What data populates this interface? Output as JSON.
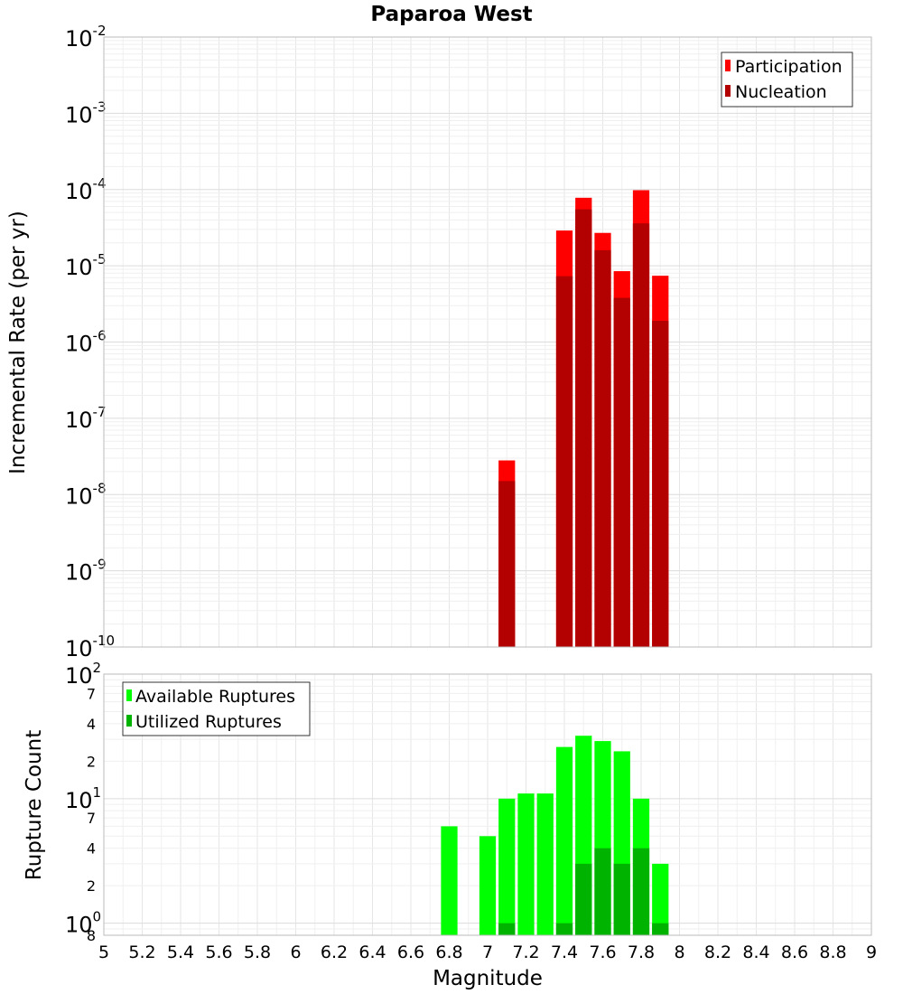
{
  "chart_data": [
    {
      "type": "bar",
      "title": "Paparoa West",
      "xlabel": "",
      "ylabel": "Incremental Rate (per yr)",
      "yscale": "log",
      "ylim": [
        1e-10,
        0.01
      ],
      "xlim": [
        5,
        9
      ],
      "grid": true,
      "legend_position": "top-right",
      "y_ticks": [
        {
          "base": "10",
          "exp": "-10"
        },
        {
          "base": "10",
          "exp": "-9"
        },
        {
          "base": "10",
          "exp": "-8"
        },
        {
          "base": "10",
          "exp": "-7"
        },
        {
          "base": "10",
          "exp": "-6"
        },
        {
          "base": "10",
          "exp": "-5"
        },
        {
          "base": "10",
          "exp": "-4"
        },
        {
          "base": "10",
          "exp": "-3"
        },
        {
          "base": "10",
          "exp": "-2"
        }
      ],
      "x": [
        7.1,
        7.4,
        7.5,
        7.6,
        7.7,
        7.8,
        7.9
      ],
      "series": [
        {
          "name": "Participation",
          "color": "#ff0000",
          "values": [
            2.8e-08,
            2.9e-05,
            7.8e-05,
            2.7e-05,
            8.5e-06,
            9.8e-05,
            7.4e-06
          ]
        },
        {
          "name": "Nucleation",
          "color": "#b30000",
          "values": [
            1.5e-08,
            7.3e-06,
            5.5e-05,
            1.6e-05,
            3.8e-06,
            3.6e-05,
            1.9e-06
          ]
        }
      ]
    },
    {
      "type": "bar",
      "xlabel": "Magnitude",
      "ylabel": "Rupture Count",
      "yscale": "log",
      "ylim": [
        0.8,
        100
      ],
      "xlim": [
        5,
        9
      ],
      "grid": true,
      "legend_position": "top-left",
      "x_ticks": [
        "5",
        "5.2",
        "5.4",
        "5.6",
        "5.8",
        "6",
        "6.2",
        "6.4",
        "6.6",
        "6.8",
        "7",
        "7.2",
        "7.4",
        "7.6",
        "7.8",
        "8",
        "8.2",
        "8.4",
        "8.6",
        "8.8",
        "9"
      ],
      "y_major_ticks": [
        {
          "base": "10",
          "exp": "0",
          "value": 1
        },
        {
          "base": "10",
          "exp": "1",
          "value": 10
        },
        {
          "base": "10",
          "exp": "2",
          "value": 100
        }
      ],
      "y_minor_ticks": [
        {
          "label": "8",
          "value": 0.8
        },
        {
          "label": "2",
          "value": 2
        },
        {
          "label": "4",
          "value": 4
        },
        {
          "label": "7",
          "value": 7
        },
        {
          "label": "2",
          "value": 20
        },
        {
          "label": "4",
          "value": 40
        },
        {
          "label": "7",
          "value": 70
        }
      ],
      "x": [
        6.8,
        7.0,
        7.1,
        7.2,
        7.3,
        7.4,
        7.5,
        7.6,
        7.7,
        7.8,
        7.9
      ],
      "series": [
        {
          "name": "Available Ruptures",
          "color": "#00ff00",
          "values": [
            6,
            5,
            10,
            11,
            11,
            26,
            32,
            29,
            24,
            10,
            3
          ]
        },
        {
          "name": "Utilized Ruptures",
          "color": "#00b300",
          "values": [
            0,
            0,
            1,
            0,
            0,
            1,
            3,
            4,
            3,
            4,
            1
          ]
        }
      ]
    }
  ]
}
